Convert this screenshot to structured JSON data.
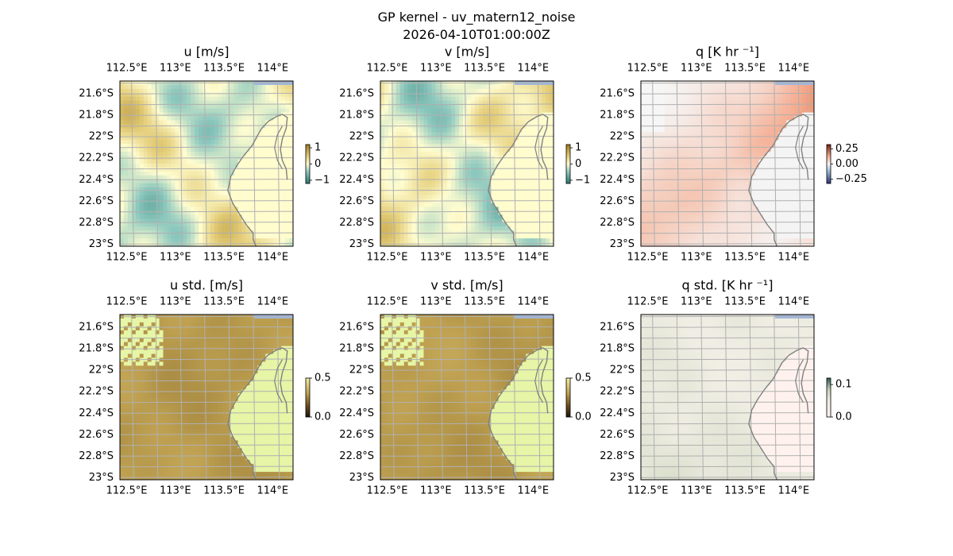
{
  "figure": {
    "title_line1": "GP kernel - uv_matern12_noise",
    "title_line2": "2026-04-10T01:00:00Z"
  },
  "map_axes": {
    "lon_ticks": [
      112.5,
      113,
      113.5,
      114
    ],
    "lon_labels": [
      "112.5°E",
      "113°E",
      "113.5°E",
      "114°E"
    ],
    "lat_ticks": [
      -21.6,
      -21.8,
      -22,
      -22.2,
      -22.4,
      -22.6,
      -22.8,
      -23
    ],
    "lat_labels": [
      "21.6°S",
      "21.8°S",
      "22°S",
      "22.2°S",
      "22.4°S",
      "22.6°S",
      "22.8°S",
      "23°S"
    ],
    "lon_range": [
      112.43,
      114.21
    ],
    "lat_range": [
      -23.02,
      -21.48
    ],
    "grid": true
  },
  "chart_data": [
    {
      "type": "heatmap",
      "title": "u [m/s]",
      "field": "u",
      "colormap": "diverging green-yellow",
      "colorbar_ticks": [
        1,
        0,
        -1
      ],
      "colorbar_labels": [
        "1",
        "0",
        "−1"
      ],
      "vmin": -1.2,
      "vmax": 1.2
    },
    {
      "type": "heatmap",
      "title": "v [m/s]",
      "field": "v",
      "colormap": "diverging green-yellow",
      "colorbar_ticks": [
        1,
        0,
        -1
      ],
      "colorbar_labels": [
        "1",
        "0",
        "−1"
      ],
      "vmin": -1.2,
      "vmax": 1.2
    },
    {
      "type": "heatmap",
      "title": "q [K hr ⁻¹]",
      "field": "q",
      "colormap": "diverging blue-red",
      "colorbar_ticks": [
        0.25,
        0,
        -0.25
      ],
      "colorbar_labels": [
        "0.25",
        "0.00",
        "−0.25"
      ],
      "vmin": -0.32,
      "vmax": 0.32
    },
    {
      "type": "heatmap",
      "title": "u std. [m/s]",
      "field": "u_std",
      "colormap": "sequential yellow-brown",
      "colorbar_ticks": [
        0.5,
        0
      ],
      "colorbar_labels": [
        "0.5",
        "0.0"
      ],
      "vmin": 0,
      "vmax": 0.5
    },
    {
      "type": "heatmap",
      "title": "v std. [m/s]",
      "field": "v_std",
      "colormap": "sequential yellow-brown",
      "colorbar_ticks": [
        0.5,
        0
      ],
      "colorbar_labels": [
        "0.5",
        "0.0"
      ],
      "vmin": 0,
      "vmax": 0.5
    },
    {
      "type": "heatmap",
      "title": "q std. [K hr ⁻¹]",
      "field": "q_std",
      "colormap": "sequential pink-green",
      "colorbar_ticks": [
        0.1,
        0
      ],
      "colorbar_labels": [
        "0.1",
        "0.0"
      ],
      "vmin": 0,
      "vmax": 0.12
    }
  ],
  "colors": {
    "ocean": "#9fb6dc",
    "coastline": "#808080",
    "gridline": "#b0b0b0",
    "land_fill_std": "#e6f5a6",
    "land_fill_q": "#f4f4f4",
    "land_fill_qstd": "#fff2ee"
  }
}
